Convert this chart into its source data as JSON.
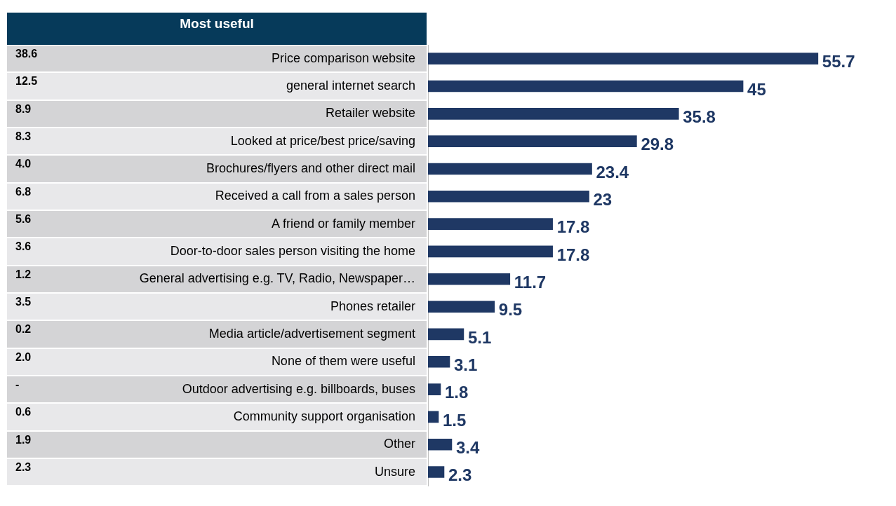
{
  "chart_data": {
    "type": "bar",
    "orientation": "horizontal",
    "data_labels": true,
    "legend": false,
    "tick_labels": "y",
    "categories": [
      "Price comparison website",
      "general internet search",
      "Retailer website",
      "Looked at price/best price/saving",
      "Brochures/flyers and other direct mail",
      "Received a call from a sales person",
      "A friend or family member",
      "Door-to-door sales person visiting the home",
      "General advertising e.g. TV, Radio, Newspaper…",
      "Phones retailer",
      "Media article/advertisement segment",
      "None of them were useful",
      "Outdoor advertising e.g. billboards, buses",
      "Community support organisation",
      "Other",
      "Unsure"
    ],
    "series": [
      {
        "color": "#1f3864",
        "values": [
          55.7,
          45,
          35.8,
          29.8,
          23.4,
          23,
          17.8,
          17.8,
          11.7,
          9.5,
          5.1,
          3.1,
          1.8,
          1.5,
          3.4,
          2.3
        ]
      }
    ],
    "annotations": [
      "Most useful",
      "38.6",
      "12.5",
      "8.9",
      "8.3",
      "4.0",
      "6.8",
      "5.6",
      "3.6",
      "1.2",
      "3.5",
      "0.2",
      "2.0",
      "-",
      "0.6",
      "1.9",
      "2.3"
    ]
  }
}
